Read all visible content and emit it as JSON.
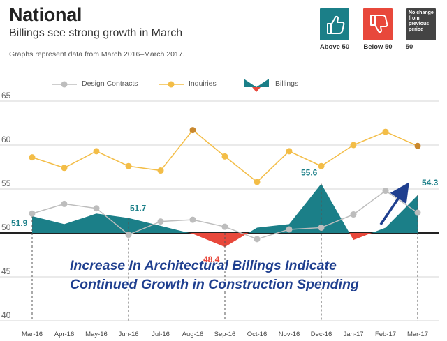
{
  "header": {
    "title": "National",
    "subtitle": "Billings see strong growth in March",
    "note": "Graphs represent data from March 2016–March 2017."
  },
  "key": {
    "above": {
      "label": "Above 50",
      "color": "#1b7f88",
      "icon": "thumbs-up-icon"
    },
    "below": {
      "label": "Below 50",
      "color": "#e8483b",
      "icon": "thumbs-down-icon"
    },
    "nochange": {
      "label": "50",
      "box_text": "No change from previous period",
      "color": "#444444"
    }
  },
  "legend": {
    "design": "Design Contracts",
    "inquiries": "Inquiries",
    "billings": "Billings"
  },
  "overlay": {
    "line1": "Increase In Architectural Billings Indicate",
    "line2": "Continued Growth in Construction Spending"
  },
  "chart_data": {
    "type": "line",
    "categories": [
      "Mar-16",
      "Apr-16",
      "May-16",
      "Jun-16",
      "Jul-16",
      "Aug-16",
      "Sep-16",
      "Oct-16",
      "Nov-16",
      "Dec-16",
      "Jan-17",
      "Feb-17",
      "Mar-17"
    ],
    "ylim": [
      40,
      65
    ],
    "yticks": [
      40,
      45,
      50,
      55,
      60,
      65
    ],
    "baseline": 50,
    "grid": true,
    "series": [
      {
        "name": "Design Contracts",
        "kind": "line",
        "color": "#bdbdbd",
        "values": [
          52.2,
          53.3,
          52.8,
          49.8,
          51.3,
          51.5,
          50.7,
          49.3,
          50.4,
          50.6,
          52.1,
          54.8,
          52.3
        ]
      },
      {
        "name": "Inquiries",
        "kind": "line",
        "color": "#f3bd47",
        "values": [
          58.6,
          57.4,
          59.3,
          57.6,
          57.1,
          61.7,
          58.7,
          55.8,
          59.3,
          57.6,
          60.0,
          61.5,
          59.9
        ]
      },
      {
        "name": "Billings",
        "kind": "area",
        "color_above": "#1b7f88",
        "color_below": "#e8483b",
        "values": [
          51.9,
          51.0,
          52.2,
          51.7,
          50.8,
          49.9,
          48.4,
          50.6,
          51.0,
          55.6,
          49.2,
          50.6,
          54.3
        ]
      }
    ],
    "data_labels": [
      {
        "series": "Billings",
        "index": 0,
        "text": "51.9",
        "color": "#1b7f88"
      },
      {
        "series": "Billings",
        "index": 3,
        "text": "51.7",
        "color": "#1b7f88"
      },
      {
        "series": "Billings",
        "index": 6,
        "text": "48.4",
        "color": "#e8483b"
      },
      {
        "series": "Billings",
        "index": 9,
        "text": "55.6",
        "color": "#1b7f88"
      },
      {
        "series": "Billings",
        "index": 12,
        "text": "54.3",
        "color": "#1b7f88"
      }
    ],
    "highlight_points": [
      {
        "series": "Inquiries",
        "index": 5,
        "color": "#c9882e"
      },
      {
        "series": "Inquiries",
        "index": 12,
        "color": "#c9882e"
      }
    ],
    "dashed_markers": [
      0,
      3,
      6,
      9,
      12
    ]
  }
}
